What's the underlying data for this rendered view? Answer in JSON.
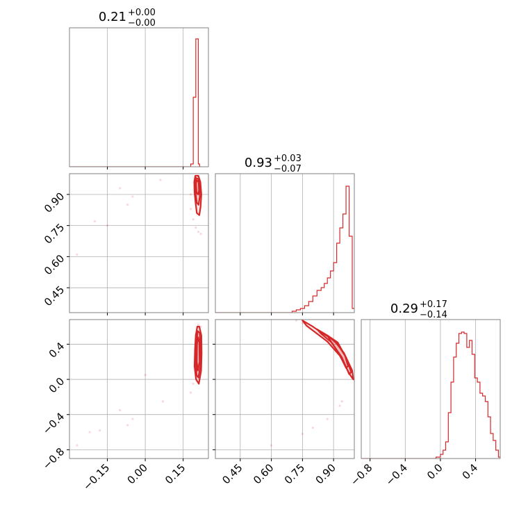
{
  "chart_data": {
    "type": "corner",
    "color": "#d62728",
    "grid": true,
    "panels": [
      {
        "id": "hist-0",
        "type": "histogram",
        "param": 0,
        "title": {
          "median": "0.21",
          "plus": "+0.00",
          "minus": "−0.00"
        },
        "xlim": [
          -0.3,
          0.25
        ],
        "grid_x": [
          -0.15,
          0.0,
          0.15
        ],
        "bin_edges": [
          -0.3,
          0.18,
          0.19,
          0.2,
          0.205,
          0.21,
          0.215,
          0.22
        ],
        "counts": [
          0,
          0.02,
          0.5,
          0.92,
          0.92,
          0.02,
          0
        ]
      },
      {
        "id": "hist-1",
        "type": "histogram",
        "param": 1,
        "title": {
          "median": "0.93",
          "plus": "+0.03",
          "minus": "−0.07"
        },
        "xlim": [
          0.33,
          1.0
        ],
        "grid_x": [
          0.45,
          0.6,
          0.75,
          0.9
        ],
        "bin_edges": [
          0.33,
          0.7,
          0.72,
          0.74,
          0.76,
          0.78,
          0.8,
          0.82,
          0.84,
          0.855,
          0.87,
          0.885,
          0.9,
          0.915,
          0.93,
          0.945,
          0.96,
          0.975,
          0.99,
          1.0
        ],
        "counts": [
          0,
          0.01,
          0.02,
          0.03,
          0.05,
          0.08,
          0.12,
          0.16,
          0.18,
          0.21,
          0.25,
          0.3,
          0.36,
          0.5,
          0.61,
          0.71,
          0.91,
          0.55,
          0.03
        ]
      },
      {
        "id": "hist-2",
        "type": "histogram",
        "param": 2,
        "title": {
          "median": "0.29",
          "plus": "+0.17",
          "minus": "−0.14"
        },
        "xlim": [
          -0.9,
          0.68
        ],
        "grid_x": [
          -0.8,
          -0.4,
          0.0,
          0.4
        ],
        "bin_edges": [
          -0.9,
          -0.05,
          0.0,
          0.03,
          0.06,
          0.09,
          0.12,
          0.15,
          0.18,
          0.21,
          0.24,
          0.27,
          0.3,
          0.33,
          0.36,
          0.39,
          0.42,
          0.45,
          0.48,
          0.51,
          0.54,
          0.57,
          0.6,
          0.63,
          0.66,
          0.68
        ],
        "counts": [
          0,
          0.01,
          0.03,
          0.06,
          0.12,
          0.33,
          0.55,
          0.73,
          0.83,
          0.9,
          0.91,
          0.9,
          0.8,
          0.85,
          0.75,
          0.58,
          0.55,
          0.47,
          0.45,
          0.41,
          0.3,
          0.18,
          0.13,
          0.06,
          0.01
        ]
      },
      {
        "id": "scatter-1-0",
        "type": "contour",
        "x_param": 0,
        "y_param": 1,
        "xlim": [
          -0.3,
          0.25
        ],
        "ylim": [
          0.33,
          1.0
        ],
        "grid_x": [
          -0.15,
          0.0,
          0.15
        ],
        "grid_y": [
          0.45,
          0.6,
          0.75,
          0.9
        ],
        "points": [
          [
            -0.27,
            0.61
          ],
          [
            -0.2,
            0.77
          ],
          [
            -0.15,
            0.75
          ],
          [
            -0.1,
            0.93
          ],
          [
            -0.07,
            0.85
          ],
          [
            -0.05,
            0.89
          ],
          [
            0.06,
            0.97
          ],
          [
            0.18,
            0.83
          ],
          [
            0.19,
            0.78
          ],
          [
            0.2,
            0.74
          ],
          [
            0.21,
            0.72
          ],
          [
            0.22,
            0.71
          ],
          [
            0.18,
            0.9
          ],
          [
            0.2,
            0.87
          ]
        ],
        "contours": [
          {
            "x": [
              0.198,
              0.21,
              0.218,
              0.222,
              0.219,
              0.214,
              0.204,
              0.199,
              0.195,
              0.194,
              0.198
            ],
            "y": [
              0.99,
              0.99,
              0.96,
              0.9,
              0.84,
              0.8,
              0.81,
              0.86,
              0.91,
              0.96,
              0.99
            ]
          },
          {
            "x": [
              0.2,
              0.21,
              0.216,
              0.216,
              0.211,
              0.204,
              0.2,
              0.198,
              0.2
            ],
            "y": [
              0.98,
              0.975,
              0.94,
              0.89,
              0.85,
              0.86,
              0.9,
              0.95,
              0.98
            ]
          },
          {
            "x": [
              0.203,
              0.211,
              0.213,
              0.209,
              0.203,
              0.201,
              0.203
            ],
            "y": [
              0.97,
              0.96,
              0.92,
              0.9,
              0.91,
              0.95,
              0.97
            ]
          }
        ]
      },
      {
        "id": "scatter-2-0",
        "type": "contour",
        "x_param": 0,
        "y_param": 2,
        "xlim": [
          -0.3,
          0.25
        ],
        "ylim": [
          -0.9,
          0.68
        ],
        "grid_x": [
          -0.15,
          0.0,
          0.15
        ],
        "grid_y": [
          -0.8,
          -0.4,
          0.0,
          0.4
        ],
        "points": [
          [
            -0.27,
            -0.75
          ],
          [
            -0.22,
            -0.6
          ],
          [
            -0.18,
            -0.58
          ],
          [
            -0.1,
            -0.35
          ],
          [
            -0.07,
            -0.52
          ],
          [
            -0.05,
            -0.45
          ],
          [
            0.0,
            0.05
          ],
          [
            0.07,
            -0.25
          ],
          [
            0.18,
            -0.15
          ],
          [
            0.21,
            0.62
          ],
          [
            0.22,
            0.6
          ],
          [
            0.2,
            0.5
          ],
          [
            0.19,
            -0.05
          ]
        ],
        "contours": [
          {
            "x": [
              0.206,
              0.214,
              0.222,
              0.223,
              0.221,
              0.212,
              0.201,
              0.195,
              0.197,
              0.2,
              0.206
            ],
            "y": [
              0.6,
              0.6,
              0.5,
              0.3,
              0.1,
              -0.05,
              0.0,
              0.15,
              0.35,
              0.5,
              0.6
            ]
          },
          {
            "x": [
              0.208,
              0.215,
              0.219,
              0.218,
              0.21,
              0.203,
              0.2,
              0.203,
              0.208
            ],
            "y": [
              0.55,
              0.53,
              0.4,
              0.15,
              0.02,
              0.05,
              0.2,
              0.45,
              0.55
            ]
          },
          {
            "x": [
              0.209,
              0.214,
              0.215,
              0.208,
              0.204,
              0.205,
              0.209
            ],
            "y": [
              0.48,
              0.42,
              0.2,
              0.1,
              0.2,
              0.4,
              0.48
            ]
          }
        ]
      },
      {
        "id": "scatter-2-1",
        "type": "contour",
        "x_param": 1,
        "y_param": 2,
        "xlim": [
          0.33,
          1.0
        ],
        "ylim": [
          -0.9,
          0.68
        ],
        "grid_x": [
          0.45,
          0.6,
          0.75,
          0.9
        ],
        "grid_y": [
          -0.8,
          -0.4,
          0.0,
          0.4
        ],
        "points": [
          [
            0.6,
            -0.75
          ],
          [
            0.75,
            -0.62
          ],
          [
            0.8,
            -0.55
          ],
          [
            0.87,
            -0.45
          ],
          [
            0.93,
            -0.3
          ],
          [
            0.94,
            -0.25
          ],
          [
            0.72,
            0.67
          ],
          [
            0.75,
            0.64
          ]
        ],
        "contours": [
          {
            "x": [
              0.75,
              0.8,
              0.85,
              0.9,
              0.95,
              0.99,
              0.995,
              0.98,
              0.93,
              0.87,
              0.82,
              0.77,
              0.75
            ],
            "y": [
              0.67,
              0.6,
              0.52,
              0.45,
              0.3,
              0.1,
              0.0,
              0.05,
              0.27,
              0.43,
              0.52,
              0.61,
              0.67
            ]
          },
          {
            "x": [
              0.82,
              0.87,
              0.92,
              0.96,
              0.985,
              0.975,
              0.94,
              0.89,
              0.84,
              0.82
            ],
            "y": [
              0.57,
              0.5,
              0.4,
              0.25,
              0.08,
              0.06,
              0.25,
              0.42,
              0.52,
              0.57
            ]
          },
          {
            "x": [
              0.87,
              0.92,
              0.955,
              0.97,
              0.96,
              0.93,
              0.89,
              0.87
            ],
            "y": [
              0.5,
              0.42,
              0.27,
              0.15,
              0.13,
              0.28,
              0.42,
              0.5
            ]
          }
        ]
      }
    ],
    "x_ticks": {
      "col0": {
        "values": [
          -0.15,
          0.0,
          0.15
        ],
        "labels": [
          "−0.15",
          "0.00",
          "0.15"
        ]
      },
      "col1": {
        "values": [
          0.45,
          0.6,
          0.75,
          0.9
        ],
        "labels": [
          "0.45",
          "0.60",
          "0.75",
          "0.90"
        ]
      },
      "col2": {
        "values": [
          -0.8,
          -0.4,
          0.0,
          0.4
        ],
        "labels": [
          "−0.8",
          "−0.4",
          "0.0",
          "0.4"
        ]
      }
    },
    "y_ticks": {
      "row1": {
        "values": [
          0.45,
          0.6,
          0.75,
          0.9
        ],
        "labels": [
          "0.45",
          "0.60",
          "0.75",
          "0.90"
        ]
      },
      "row2": {
        "values": [
          -0.8,
          -0.4,
          0.0,
          0.4
        ],
        "labels": [
          "−0.8",
          "−0.4",
          "0.0",
          "0.4"
        ]
      }
    }
  }
}
